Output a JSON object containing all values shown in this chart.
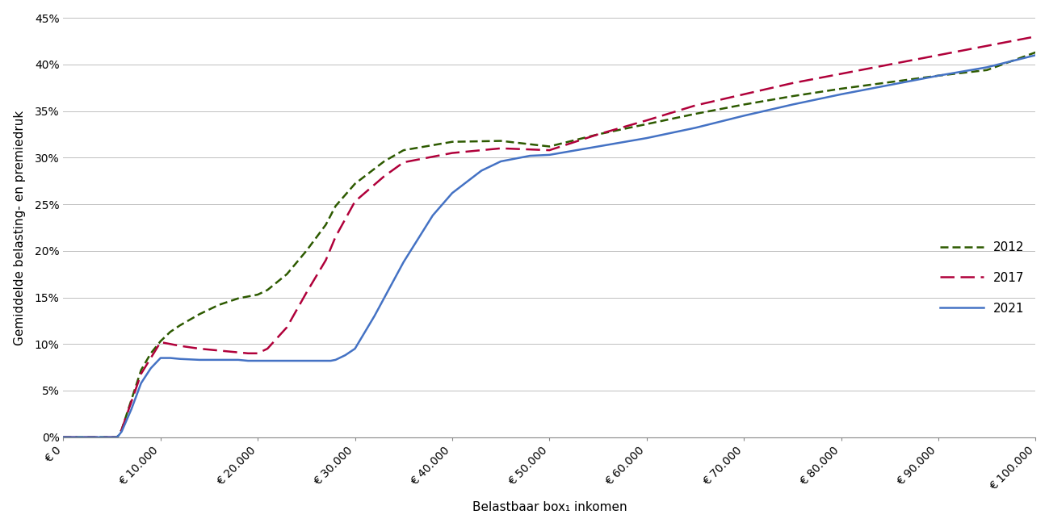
{
  "title": "",
  "xlabel": "Belastbaar box₁ inkomen",
  "ylabel": "Gemiddelde belasting- en premiedruk",
  "xlim": [
    0,
    100000
  ],
  "ylim": [
    0,
    0.45
  ],
  "yticks": [
    0.0,
    0.05,
    0.1,
    0.15,
    0.2,
    0.25,
    0.3,
    0.35,
    0.4,
    0.45
  ],
  "xticks": [
    0,
    10000,
    20000,
    30000,
    40000,
    50000,
    60000,
    70000,
    80000,
    90000,
    100000
  ],
  "xtick_labels": [
    "€ 0",
    "€ 10.000",
    "€ 20.000",
    "€ 30.000",
    "€ 40.000",
    "€ 50.000",
    "€ 60.000",
    "€ 70.000",
    "€ 80.000",
    "€ 90.000",
    "€ 100.000"
  ],
  "line_2012": {
    "color": "#2d5a00",
    "linestyle": "--",
    "linewidth": 1.8,
    "label": "2012",
    "x": [
      0,
      5500,
      5700,
      6000,
      7000,
      8000,
      9000,
      10000,
      11000,
      12000,
      14000,
      16000,
      18000,
      19000,
      19500,
      20000,
      21000,
      23000,
      25000,
      27000,
      28000,
      30000,
      33000,
      35000,
      40000,
      45000,
      50000,
      55000,
      60000,
      65000,
      70000,
      75000,
      80000,
      85000,
      90000,
      95000,
      100000
    ],
    "y": [
      0.0,
      0.0,
      0.002,
      0.008,
      0.04,
      0.072,
      0.09,
      0.103,
      0.113,
      0.12,
      0.132,
      0.142,
      0.149,
      0.151,
      0.152,
      0.153,
      0.158,
      0.175,
      0.2,
      0.228,
      0.248,
      0.272,
      0.296,
      0.308,
      0.317,
      0.318,
      0.312,
      0.325,
      0.336,
      0.347,
      0.357,
      0.366,
      0.374,
      0.381,
      0.388,
      0.394,
      0.413
    ]
  },
  "line_2017": {
    "color": "#b0003a",
    "linestyle": "--",
    "linewidth": 1.8,
    "label": "2017",
    "x": [
      0,
      5500,
      5700,
      6000,
      7000,
      8000,
      9000,
      10000,
      11000,
      12000,
      14000,
      16000,
      18000,
      19000,
      19500,
      20000,
      21000,
      23000,
      25000,
      27000,
      28000,
      30000,
      33000,
      35000,
      40000,
      45000,
      50000,
      55000,
      60000,
      65000,
      70000,
      75000,
      80000,
      85000,
      90000,
      95000,
      100000
    ],
    "y": [
      0.0,
      0.0,
      0.002,
      0.008,
      0.038,
      0.068,
      0.085,
      0.102,
      0.1,
      0.098,
      0.095,
      0.093,
      0.091,
      0.09,
      0.09,
      0.09,
      0.095,
      0.118,
      0.155,
      0.19,
      0.215,
      0.253,
      0.28,
      0.295,
      0.305,
      0.31,
      0.308,
      0.325,
      0.34,
      0.356,
      0.368,
      0.38,
      0.39,
      0.4,
      0.41,
      0.42,
      0.43
    ]
  },
  "line_2021": {
    "color": "#4472c4",
    "linestyle": "-",
    "linewidth": 1.8,
    "label": "2021",
    "x": [
      0,
      5500,
      5700,
      6000,
      7000,
      8000,
      9000,
      10000,
      11000,
      12000,
      14000,
      16000,
      18000,
      19000,
      19500,
      21000,
      22000,
      23000,
      24000,
      25000,
      26000,
      27000,
      27500,
      28000,
      29000,
      30000,
      32000,
      35000,
      38000,
      40000,
      43000,
      45000,
      48000,
      50000,
      55000,
      60000,
      65000,
      70000,
      75000,
      80000,
      85000,
      90000,
      95000,
      100000
    ],
    "y": [
      0.0,
      0.0,
      0.002,
      0.006,
      0.03,
      0.058,
      0.074,
      0.085,
      0.085,
      0.084,
      0.083,
      0.083,
      0.083,
      0.082,
      0.082,
      0.082,
      0.082,
      0.082,
      0.082,
      0.082,
      0.082,
      0.082,
      0.082,
      0.083,
      0.088,
      0.095,
      0.13,
      0.188,
      0.238,
      0.262,
      0.286,
      0.296,
      0.302,
      0.303,
      0.312,
      0.321,
      0.332,
      0.345,
      0.357,
      0.368,
      0.378,
      0.388,
      0.397,
      0.41
    ]
  },
  "background_color": "#ffffff",
  "grid_color": "#bebebe",
  "legend_fontsize": 11,
  "axis_label_fontsize": 11,
  "tick_fontsize": 10
}
